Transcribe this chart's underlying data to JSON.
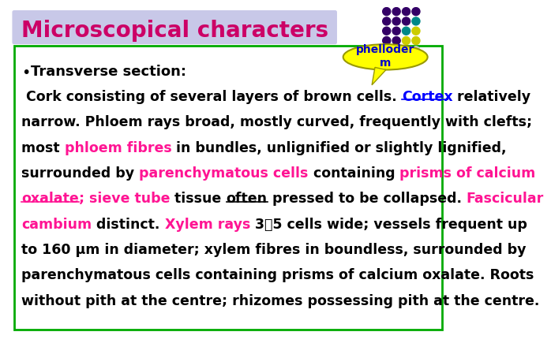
{
  "title": "Microscopical characters",
  "title_bg": "#c8c8e8",
  "title_color": "#cc0066",
  "title_fontsize": 20,
  "box_border_color": "#00aa00",
  "background_color": "#ffffff",
  "bullet_text": "Transverse section:",
  "callout_text": "phelloder\nm",
  "callout_bg": "#ffff00",
  "callout_text_color": "#0000cc",
  "dot_grid_colors": [
    [
      "#330066",
      "#330066",
      "#330066",
      "#330066"
    ],
    [
      "#330066",
      "#330066",
      "#330066",
      "#008888"
    ],
    [
      "#330066",
      "#330066",
      "#008888",
      "#cccc00"
    ],
    [
      "#330066",
      "#330066",
      "#cccc00",
      "#cccc00"
    ],
    [
      "#330066",
      "#008888",
      "#cccc00",
      "#cccccc"
    ]
  ],
  "body_lines": [
    {
      "segments": [
        {
          "text": " Cork consisting of several layers of brown cells. ",
          "color": "#000000",
          "underline": false
        },
        {
          "text": "Cortex",
          "color": "#0000ff",
          "underline": true
        },
        {
          "text": " relatively",
          "color": "#000000",
          "underline": false
        }
      ]
    },
    {
      "segments": [
        {
          "text": "narrow. Phloem rays broad, mostly curved, frequently with clefts;",
          "color": "#000000",
          "underline": false
        }
      ]
    },
    {
      "segments": [
        {
          "text": "most ",
          "color": "#000000",
          "underline": false
        },
        {
          "text": "phloem fibres",
          "color": "#ff1493",
          "underline": false
        },
        {
          "text": " in bundles, unlignified or slightly lignified,",
          "color": "#000000",
          "underline": false
        }
      ]
    },
    {
      "segments": [
        {
          "text": "surrounded by ",
          "color": "#000000",
          "underline": false
        },
        {
          "text": "parenchymatous cells",
          "color": "#ff1493",
          "underline": false
        },
        {
          "text": " containing ",
          "color": "#000000",
          "underline": false
        },
        {
          "text": "prisms of calcium",
          "color": "#ff1493",
          "underline": false
        }
      ]
    },
    {
      "segments": [
        {
          "text": "oxalate",
          "color": "#ff1493",
          "underline": true
        },
        {
          "text": "; ",
          "color": "#ff1493",
          "underline": false
        },
        {
          "text": "sieve tube",
          "color": "#ff1493",
          "underline": false
        },
        {
          "text": " tissue ",
          "color": "#000000",
          "underline": false
        },
        {
          "text": "often",
          "color": "#000000",
          "underline": true
        },
        {
          "text": " pressed to be collapsed. ",
          "color": "#000000",
          "underline": false
        },
        {
          "text": "Fascicular",
          "color": "#ff1493",
          "underline": false
        }
      ]
    },
    {
      "segments": [
        {
          "text": "cambium",
          "color": "#ff1493",
          "underline": false
        },
        {
          "text": " distinct. ",
          "color": "#000000",
          "underline": false
        },
        {
          "text": "Xylem rays",
          "color": "#ff1493",
          "underline": false
        },
        {
          "text": " 3～5 cells wide; vessels frequent up",
          "color": "#000000",
          "underline": false
        }
      ]
    },
    {
      "segments": [
        {
          "text": "to 160 μm in diameter; xylem fibres in boundless, surrounded by",
          "color": "#000000",
          "underline": false
        }
      ]
    },
    {
      "segments": [
        {
          "text": "parenchymatous cells containing prisms of calcium oxalate. Roots",
          "color": "#000000",
          "underline": false
        }
      ]
    },
    {
      "segments": [
        {
          "text": "without pith at the centre; rhizomes possessing pith at the centre.",
          "color": "#000000",
          "underline": false
        }
      ]
    }
  ]
}
